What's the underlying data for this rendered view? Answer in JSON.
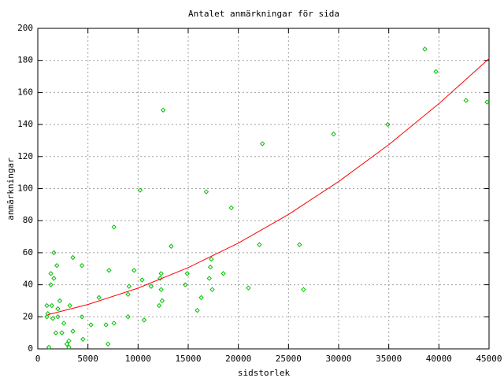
{
  "chart_data": {
    "type": "scatter",
    "title": "Antalet anmärkningar för sida",
    "x_label": "sidstorlek",
    "y_label": "anmärkningar",
    "xlim": [
      0,
      45000
    ],
    "xticks": [
      0,
      5000,
      10000,
      15000,
      20000,
      25000,
      30000,
      35000,
      40000,
      45000
    ],
    "ylim": [
      0,
      200
    ],
    "yticks": [
      0,
      20,
      40,
      60,
      80,
      100,
      120,
      140,
      160,
      180,
      200
    ],
    "grid": true,
    "series": [
      {
        "type": "scatter",
        "color": "#00c000",
        "x": [
          12500,
          38600,
          39700,
          42700,
          44800,
          34900,
          29500,
          22400,
          10200,
          16800,
          19300,
          7600,
          22100,
          26100,
          13300,
          1600,
          3500,
          17300,
          4400,
          1900,
          7100,
          9600,
          17200,
          1300,
          14900,
          18500,
          1600,
          10400,
          12200,
          17100,
          12300,
          9100,
          11300,
          14700,
          1300,
          21000,
          12300,
          17400,
          26500,
          9000,
          12400,
          6100,
          16300,
          12100,
          900,
          1400,
          2200,
          3200,
          2000,
          1000,
          15900,
          1500,
          2000,
          4400,
          9000,
          7600,
          5300,
          6800,
          10600,
          2600,
          2400,
          1800,
          3500,
          4500,
          3100,
          2900,
          7000,
          1100,
          3100,
          900
        ],
        "values": [
          149,
          187,
          173,
          155,
          154,
          140,
          134,
          128,
          99,
          98,
          88,
          76,
          65,
          65,
          64,
          60,
          57,
          56,
          52,
          52,
          49,
          49,
          51,
          47,
          47,
          47,
          44,
          43,
          44,
          44,
          47,
          39,
          39,
          40,
          40,
          38,
          37,
          37,
          37,
          34,
          30,
          32,
          32,
          27,
          27,
          27,
          30,
          27,
          25,
          22,
          24,
          19,
          20,
          20,
          20,
          16,
          15,
          15,
          18,
          16,
          10,
          10,
          11,
          6,
          5,
          3,
          3,
          1,
          1,
          20
        ]
      },
      {
        "type": "line",
        "color": "#ff0000",
        "x": [
          1000,
          5000,
          10000,
          15000,
          20000,
          25000,
          30000,
          35000,
          40000,
          45000
        ],
        "values": [
          21.3,
          27.7,
          37.9,
          50.7,
          66.0,
          83.9,
          104.4,
          127.4,
          153.0,
          181.1
        ]
      }
    ]
  }
}
